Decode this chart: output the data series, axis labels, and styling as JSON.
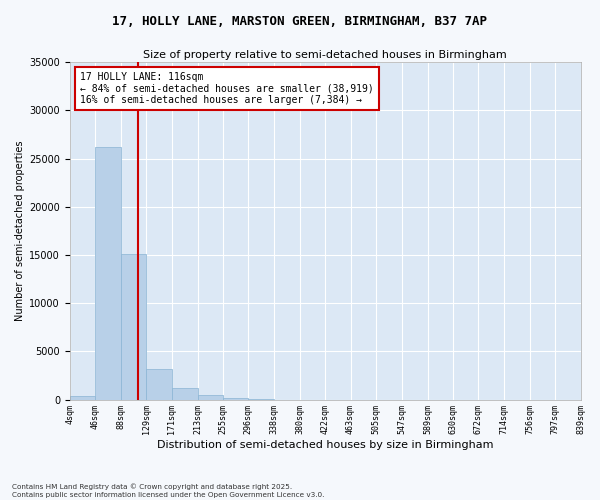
{
  "title_line1": "17, HOLLY LANE, MARSTON GREEN, BIRMINGHAM, B37 7AP",
  "title_line2": "Size of property relative to semi-detached houses in Birmingham",
  "xlabel": "Distribution of semi-detached houses by size in Birmingham",
  "ylabel": "Number of semi-detached properties",
  "footnote": "Contains HM Land Registry data © Crown copyright and database right 2025.\nContains public sector information licensed under the Open Government Licence v3.0.",
  "bar_color": "#b8d0e8",
  "bar_edge_color": "#8ab4d4",
  "background_color": "#dce8f5",
  "grid_color": "#ffffff",
  "fig_background": "#f5f8fc",
  "vline_color": "#cc0000",
  "vline_x": 116,
  "annotation_title": "17 HOLLY LANE: 116sqm",
  "annotation_line1": "← 84% of semi-detached houses are smaller (38,919)",
  "annotation_line2": "16% of semi-detached houses are larger (7,384) →",
  "categories": [
    "4sqm",
    "46sqm",
    "88sqm",
    "129sqm",
    "171sqm",
    "213sqm",
    "255sqm",
    "296sqm",
    "338sqm",
    "380sqm",
    "422sqm",
    "463sqm",
    "505sqm",
    "547sqm",
    "589sqm",
    "630sqm",
    "672sqm",
    "714sqm",
    "756sqm",
    "797sqm",
    "839sqm"
  ],
  "bin_edges": [
    4,
    46,
    88,
    129,
    171,
    213,
    255,
    296,
    338,
    380,
    422,
    463,
    505,
    547,
    589,
    630,
    672,
    714,
    756,
    797,
    839
  ],
  "values": [
    400,
    26200,
    15100,
    3200,
    1200,
    450,
    200,
    50,
    0,
    0,
    0,
    0,
    0,
    0,
    0,
    0,
    0,
    0,
    0,
    0
  ],
  "ylim": [
    0,
    35000
  ],
  "yticks": [
    0,
    5000,
    10000,
    15000,
    20000,
    25000,
    30000,
    35000
  ]
}
